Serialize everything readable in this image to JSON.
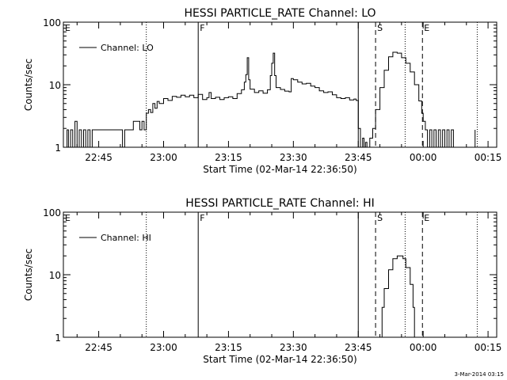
{
  "footer": {
    "timestamp": "3-Mar-2014 03:15"
  },
  "chart_data": [
    {
      "type": "line",
      "title": "HESSI PARTICLE_RATE Channel: LO",
      "xlabel": "Start Time (02-Mar-14 22:36:50)",
      "ylabel": "Counts/sec",
      "yscale": "log",
      "ylim": [
        1,
        100
      ],
      "xlim": [
        "22:36:50",
        "00:17:00"
      ],
      "xticks": [
        "22:45",
        "23:00",
        "23:15",
        "23:30",
        "23:45",
        "00:00",
        "00:15"
      ],
      "yticks": [
        "1",
        "10",
        "100"
      ],
      "legend": {
        "position": "top-left"
      },
      "series": [
        {
          "name": "Channel: LO",
          "points": [
            [
              "22:37:00",
              1.0
            ],
            [
              "22:37:40",
              1.9
            ],
            [
              "22:38:00",
              1.0
            ],
            [
              "22:38:30",
              1.9
            ],
            [
              "22:39:00",
              1.0
            ],
            [
              "22:39:30",
              2.6
            ],
            [
              "22:40:00",
              1.0
            ],
            [
              "22:40:30",
              1.9
            ],
            [
              "22:41:00",
              1.0
            ],
            [
              "22:41:30",
              1.9
            ],
            [
              "22:42:00",
              1.0
            ],
            [
              "22:42:30",
              1.9
            ],
            [
              "22:43:00",
              1.0
            ],
            [
              "22:43:30",
              1.9
            ],
            [
              "22:44:00",
              1.9
            ],
            [
              "22:45:00",
              1.9
            ],
            [
              "22:46:00",
              1.9
            ],
            [
              "22:47:00",
              1.9
            ],
            [
              "22:48:00",
              1.9
            ],
            [
              "22:49:00",
              1.9
            ],
            [
              "22:50:00",
              1.9
            ],
            [
              "22:50:30",
              1.0
            ],
            [
              "22:51:00",
              1.9
            ],
            [
              "22:52:00",
              1.9
            ],
            [
              "22:53:00",
              2.6
            ],
            [
              "22:54:00",
              2.6
            ],
            [
              "22:54:30",
              1.9
            ],
            [
              "22:55:00",
              2.6
            ],
            [
              "22:55:30",
              1.9
            ],
            [
              "22:56:00",
              3.5
            ],
            [
              "22:56:30",
              4.0
            ],
            [
              "22:57:00",
              3.6
            ],
            [
              "22:57:30",
              5.0
            ],
            [
              "22:58:00",
              4.2
            ],
            [
              "22:58:30",
              5.4
            ],
            [
              "22:59:00",
              5.0
            ],
            [
              "23:00:00",
              6.0
            ],
            [
              "23:01:00",
              5.6
            ],
            [
              "23:02:00",
              6.5
            ],
            [
              "23:03:00",
              6.3
            ],
            [
              "23:04:00",
              6.8
            ],
            [
              "23:05:00",
              6.4
            ],
            [
              "23:06:00",
              6.8
            ],
            [
              "23:07:00",
              6.2
            ],
            [
              "23:08:00",
              7.0
            ],
            [
              "23:09:00",
              5.8
            ],
            [
              "23:10:00",
              6.2
            ],
            [
              "23:10:30",
              7.5
            ],
            [
              "23:11:00",
              6.0
            ],
            [
              "23:12:00",
              6.3
            ],
            [
              "23:13:00",
              5.8
            ],
            [
              "23:14:00",
              6.2
            ],
            [
              "23:15:00",
              6.4
            ],
            [
              "23:16:00",
              6.0
            ],
            [
              "23:17:00",
              7.2
            ],
            [
              "23:18:00",
              8.3
            ],
            [
              "23:18:40",
              11.0
            ],
            [
              "23:19:00",
              14.5
            ],
            [
              "23:19:20",
              27.0
            ],
            [
              "23:19:40",
              12.0
            ],
            [
              "23:20:00",
              8.5
            ],
            [
              "23:21:00",
              7.5
            ],
            [
              "23:22:00",
              8.0
            ],
            [
              "23:23:00",
              7.3
            ],
            [
              "23:24:00",
              8.3
            ],
            [
              "23:24:40",
              14.0
            ],
            [
              "23:25:00",
              22.0
            ],
            [
              "23:25:20",
              32.0
            ],
            [
              "23:25:40",
              14.0
            ],
            [
              "23:26:00",
              9.0
            ],
            [
              "23:27:00",
              8.4
            ],
            [
              "23:28:00",
              7.9
            ],
            [
              "23:29:00",
              7.7
            ],
            [
              "23:29:30",
              12.5
            ],
            [
              "23:30:00",
              12.0
            ],
            [
              "23:31:00",
              11.0
            ],
            [
              "23:32:00",
              10.3
            ],
            [
              "23:33:00",
              10.5
            ],
            [
              "23:34:00",
              9.5
            ],
            [
              "23:35:00",
              9.0
            ],
            [
              "23:36:00",
              8.0
            ],
            [
              "23:37:00",
              7.5
            ],
            [
              "23:38:00",
              7.7
            ],
            [
              "23:39:00",
              6.9
            ],
            [
              "23:40:00",
              6.2
            ],
            [
              "23:41:00",
              6.0
            ],
            [
              "23:42:00",
              6.2
            ],
            [
              "23:43:00",
              5.7
            ],
            [
              "23:44:00",
              5.9
            ],
            [
              "23:44:30",
              5.6
            ],
            [
              "23:45:00",
              2.0
            ],
            [
              "23:45:30",
              1.0
            ],
            [
              "23:46:00",
              1.4
            ],
            [
              "23:46:20",
              1.0
            ],
            [
              "23:46:40",
              1.2
            ],
            [
              "23:47:00",
              1.0
            ],
            [
              "23:47:40",
              1.4
            ],
            [
              "23:48:20",
              2.0
            ],
            [
              "23:49:00",
              4.0
            ],
            [
              "23:50:00",
              9.0
            ],
            [
              "23:51:00",
              17.0
            ],
            [
              "23:52:00",
              28.0
            ],
            [
              "23:53:00",
              33.0
            ],
            [
              "23:54:00",
              32.0
            ],
            [
              "23:55:00",
              27.0
            ],
            [
              "23:56:00",
              22.0
            ],
            [
              "23:57:00",
              16.0
            ],
            [
              "23:58:00",
              10.0
            ],
            [
              "23:59:00",
              5.5
            ],
            [
              "23:59:40",
              3.5
            ],
            [
              "00:00:00",
              2.6
            ],
            [
              "00:00:30",
              1.9
            ],
            [
              "00:01:00",
              1.0
            ],
            [
              "00:01:30",
              1.9
            ],
            [
              "00:02:00",
              1.0
            ],
            [
              "00:02:30",
              1.9
            ],
            [
              "00:03:00",
              1.0
            ],
            [
              "00:03:30",
              1.9
            ],
            [
              "00:04:00",
              1.0
            ],
            [
              "00:04:30",
              1.9
            ],
            [
              "00:05:00",
              1.0
            ],
            [
              "00:05:30",
              1.9
            ],
            [
              "00:06:00",
              1.0
            ],
            [
              "00:06:30",
              1.9
            ],
            [
              "00:07:00",
              1.0
            ],
            [
              "00:07:30",
              1.0
            ],
            [
              "00:08:00",
              1.0
            ],
            [
              "00:11:30",
              1.0
            ],
            [
              "00:12:00",
              1.9
            ]
          ]
        }
      ],
      "markers": [
        {
          "label": "E",
          "time": "22:36:50",
          "style": "none"
        },
        {
          "label": "",
          "time": "22:56:00",
          "style": "dotted"
        },
        {
          "label": "F",
          "time": "23:08:00",
          "style": "solid"
        },
        {
          "label": "",
          "time": "23:45:00",
          "style": "solid"
        },
        {
          "label": "S",
          "time": "23:49:00",
          "style": "dashed"
        },
        {
          "label": "",
          "time": "23:55:50",
          "style": "dotted"
        },
        {
          "label": "E",
          "time": "23:59:50",
          "style": "dashed"
        },
        {
          "label": "",
          "time": "00:12:30",
          "style": "dotted"
        }
      ]
    },
    {
      "type": "line",
      "title": "HESSI PARTICLE_RATE Channel: HI",
      "xlabel": "Start Time (02-Mar-14 22:36:50)",
      "ylabel": "Counts/sec",
      "yscale": "log",
      "ylim": [
        1,
        100
      ],
      "xlim": [
        "22:36:50",
        "00:17:00"
      ],
      "xticks": [
        "22:45",
        "23:00",
        "23:15",
        "23:30",
        "23:45",
        "00:00",
        "00:15"
      ],
      "yticks": [
        "1",
        "10",
        "100"
      ],
      "legend": {
        "position": "top-left"
      },
      "series": [
        {
          "name": "Channel: HI",
          "points": [
            [
              "23:50:00",
              1.0
            ],
            [
              "23:50:30",
              3.0
            ],
            [
              "23:51:00",
              6.0
            ],
            [
              "23:52:00",
              12.0
            ],
            [
              "23:53:00",
              18.0
            ],
            [
              "23:54:00",
              20.0
            ],
            [
              "23:54:40",
              20.0
            ],
            [
              "23:55:20",
              18.0
            ],
            [
              "23:56:00",
              13.0
            ],
            [
              "23:57:00",
              7.0
            ],
            [
              "23:57:40",
              3.0
            ],
            [
              "23:58:00",
              1.0
            ]
          ]
        }
      ],
      "markers": [
        {
          "label": "E",
          "time": "22:36:50",
          "style": "none"
        },
        {
          "label": "",
          "time": "22:56:00",
          "style": "dotted"
        },
        {
          "label": "F",
          "time": "23:08:00",
          "style": "solid"
        },
        {
          "label": "",
          "time": "23:45:00",
          "style": "solid"
        },
        {
          "label": "S",
          "time": "23:49:00",
          "style": "dashed"
        },
        {
          "label": "",
          "time": "23:55:50",
          "style": "dotted"
        },
        {
          "label": "E",
          "time": "23:59:50",
          "style": "dashed"
        },
        {
          "label": "",
          "time": "00:12:30",
          "style": "dotted"
        }
      ]
    }
  ]
}
